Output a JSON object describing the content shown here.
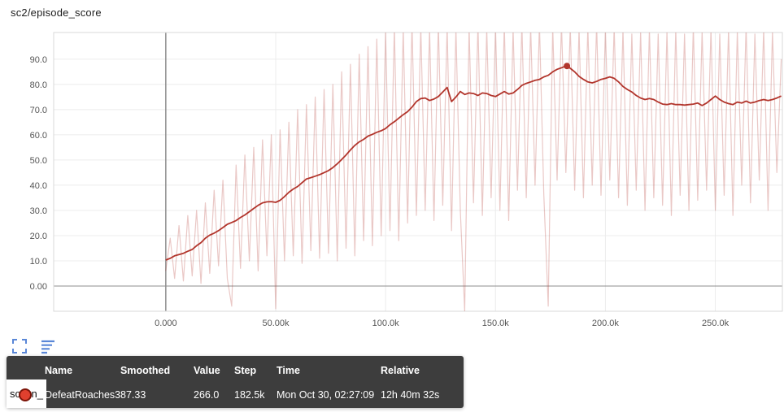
{
  "title": "sc2/episode_score",
  "colors": {
    "accent_blue": "#5a87d7",
    "series_red": "#b2352c",
    "grid": "#ececec",
    "axis": "#8f8f8f",
    "border": "#d9d9d9",
    "tick_text": "#555555",
    "tooltip_bg": "rgba(40,40,40,0.9)"
  },
  "chart_data": {
    "type": "line",
    "title": "sc2/episode_score",
    "xlabel": "",
    "ylabel": "",
    "grid": true,
    "xlim": [
      -51000,
      280500
    ],
    "ylim": [
      -10,
      100.6
    ],
    "x_ticks": [
      0,
      50000,
      100000,
      150000,
      200000,
      250000
    ],
    "x_tick_labels": [
      "0.000",
      "50.00k",
      "100.0k",
      "150.0k",
      "200.0k",
      "250.0k"
    ],
    "y_ticks": [
      0,
      10,
      20,
      30,
      40,
      50,
      60,
      70,
      80,
      90
    ],
    "y_tick_labels": [
      "0.00",
      "10.0",
      "20.0",
      "30.0",
      "40.0",
      "50.0",
      "60.0",
      "70.0",
      "80.0",
      "90.0"
    ],
    "x_unit": 1000,
    "x_k": [
      0,
      2,
      4,
      6,
      8,
      10,
      12,
      14,
      16,
      18,
      20,
      22,
      24,
      26,
      28,
      30,
      32,
      34,
      36,
      38,
      40,
      42,
      44,
      46,
      48,
      50,
      52,
      54,
      56,
      58,
      60,
      62,
      64,
      66,
      68,
      70,
      72,
      74,
      76,
      78,
      80,
      82,
      84,
      86,
      88,
      90,
      92,
      94,
      96,
      98,
      100,
      102,
      104,
      106,
      108,
      110,
      112,
      114,
      116,
      118,
      120,
      122,
      124,
      126,
      128,
      130,
      132,
      134,
      136,
      138,
      140,
      142,
      144,
      146,
      148,
      150,
      152,
      154,
      156,
      158,
      160,
      162,
      164,
      166,
      168,
      170,
      172,
      174,
      176,
      178,
      180,
      182,
      184,
      186,
      188,
      190,
      192,
      194,
      196,
      198,
      200,
      202,
      204,
      206,
      208,
      210,
      212,
      214,
      216,
      218,
      220,
      222,
      224,
      226,
      228,
      230,
      232,
      234,
      236,
      238,
      240,
      242,
      244,
      246,
      248,
      250,
      252,
      254,
      256,
      258,
      260,
      262,
      264,
      266,
      268,
      270,
      272,
      274,
      276,
      278,
      280
    ],
    "series": [
      {
        "name": "DefeatRoaches3 (raw)",
        "color": "#b2352c",
        "opacity": 0.27,
        "width": 1.2,
        "values": [
          6,
          19,
          3,
          24,
          2,
          28,
          4,
          30,
          1,
          33,
          5,
          38,
          8,
          42,
          3,
          -8,
          48,
          7,
          52,
          10,
          55,
          6,
          58,
          12,
          60,
          -9,
          62,
          10,
          65,
          12,
          70,
          9,
          72,
          14,
          75,
          11,
          78,
          13,
          80,
          10,
          85,
          15,
          88,
          12,
          92,
          18,
          95,
          16,
          98,
          20,
          101,
          22,
          103,
          18,
          102,
          25,
          104,
          28,
          103,
          30,
          102,
          26,
          104,
          32,
          103,
          22,
          102,
          30,
          -10,
          103,
          33,
          104,
          28,
          102,
          35,
          103,
          30,
          104,
          26,
          102,
          38,
          104,
          35,
          103,
          40,
          104,
          36,
          -8,
          103,
          42,
          104,
          45,
          103,
          38,
          102,
          35,
          103,
          40,
          104,
          36,
          102,
          42,
          103,
          35,
          102,
          32,
          100,
          38,
          101,
          30,
          102,
          35,
          100,
          32,
          101,
          28,
          102,
          36,
          100,
          30,
          103,
          34,
          101,
          38,
          102,
          30,
          100,
          36,
          102,
          28,
          101,
          40,
          103,
          33,
          100,
          42,
          102,
          30,
          101,
          45,
          90
        ]
      },
      {
        "name": "DefeatRoaches3 (smoothed)",
        "color": "#b2352c",
        "opacity": 1,
        "width": 1.8,
        "values": [
          10.3,
          11,
          12,
          12.5,
          13,
          13.8,
          14.5,
          16,
          17.2,
          19,
          20.2,
          21,
          22,
          23.2,
          24.5,
          25.2,
          26,
          27.2,
          28.2,
          29.5,
          30.8,
          32,
          33,
          33.4,
          33.5,
          33.2,
          34,
          35.5,
          37.2,
          38.5,
          39.5,
          41,
          42.5,
          43,
          43.6,
          44.2,
          45,
          45.8,
          47,
          48.5,
          50.2,
          52,
          54,
          55.8,
          57.2,
          58.2,
          59.5,
          60.2,
          61,
          61.6,
          62.5,
          64,
          65.2,
          66.6,
          68,
          69.2,
          71,
          73.2,
          74.4,
          74.6,
          73.6,
          74.2,
          75.2,
          77,
          78.8,
          73.2,
          75,
          77.2,
          76,
          76.6,
          76.4,
          75.6,
          76.6,
          76.4,
          75.6,
          75.2,
          76.2,
          77.2,
          76.2,
          76.6,
          78,
          79.6,
          80.4,
          81,
          81.6,
          82,
          83,
          83.6,
          85,
          86,
          86.6,
          87.3,
          86.4,
          85,
          83.2,
          82,
          81,
          80.6,
          81.2,
          82,
          82.4,
          83,
          82.4,
          81,
          79.2,
          78,
          77,
          75.6,
          74.6,
          74,
          74.4,
          74,
          73,
          72.2,
          72,
          72.4,
          72,
          72,
          71.8,
          72,
          72.2,
          72.6,
          71.6,
          72.6,
          74,
          75.4,
          74,
          73,
          72.4,
          72,
          73,
          72.6,
          73.4,
          72.6,
          73,
          73.6,
          74,
          73.6,
          74,
          74.6,
          75.4
        ]
      }
    ],
    "hover_point": {
      "step": 182500,
      "value": 87.33
    }
  },
  "controls": {
    "expand_label": "expand chart",
    "runs_label": "toggle runs"
  },
  "tooltip": {
    "headers": [
      "Name",
      "Smoothed",
      "Value",
      "Step",
      "Time",
      "Relative"
    ],
    "row": {
      "name": "DefeatRoaches3",
      "smoothed": "87.33",
      "value": "266.0",
      "step": "182.5k",
      "time": "Mon Oct 30, 02:27:09",
      "relative": "12h 40m 32s",
      "marker_color": "#e0402e",
      "marker_ring": "#7c1408"
    }
  },
  "fragment": {
    "left": "sc",
    "right": "n_"
  }
}
